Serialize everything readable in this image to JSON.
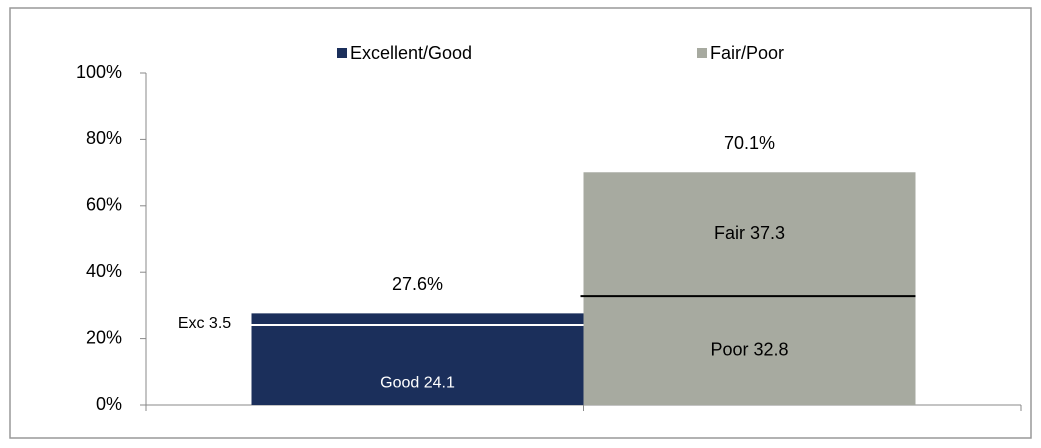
{
  "chart_data": {
    "type": "stacked_bar",
    "bars": [
      {
        "name": "Excellent/Good",
        "color": "#1b2f5b",
        "divider_color": "#ffffff",
        "label_color": "#ffffff",
        "segments": [
          {
            "label": "Good 24.1",
            "value": 24.1
          },
          {
            "label": "Exc 3.5",
            "value": 3.5
          }
        ],
        "total": 27.6,
        "total_label": "27.6%"
      },
      {
        "name": "Fair/Poor",
        "color": "#a7aaa0",
        "divider_color": "#000000",
        "label_color": "#000000",
        "segments": [
          {
            "label": "Poor 32.8",
            "value": 32.8
          },
          {
            "label": "Fair 37.3",
            "value": 37.3
          }
        ],
        "total": 70.1,
        "total_label": "70.1%"
      }
    ],
    "ylim": [
      0,
      100
    ],
    "yticks": [
      {
        "value": 0,
        "label": "0%"
      },
      {
        "value": 20,
        "label": "20%"
      },
      {
        "value": 40,
        "label": "40%"
      },
      {
        "value": 60,
        "label": "60%"
      },
      {
        "value": 80,
        "label": "80%"
      },
      {
        "value": 100,
        "label": "100%"
      }
    ]
  }
}
